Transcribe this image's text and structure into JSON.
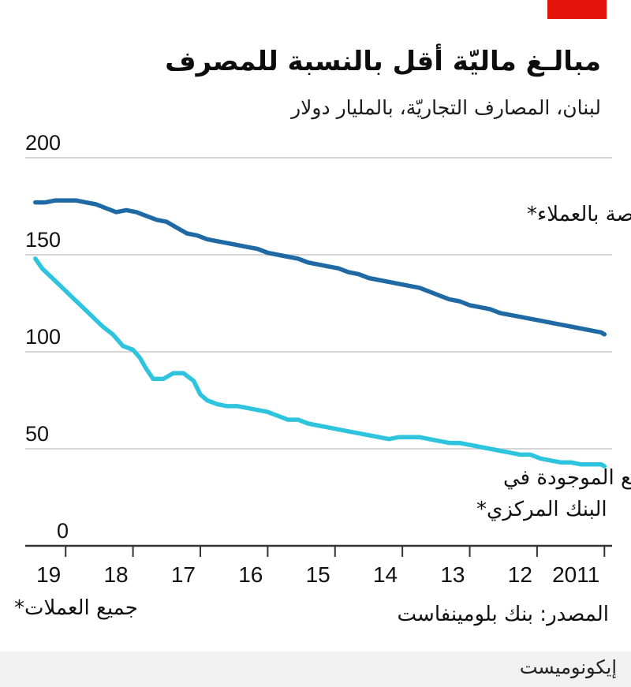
{
  "title": "مبالـغ ماليّة أقل بالنسبة للمصرف",
  "subtitle": "لبنان، المصارف التجاريّة، بالمليار دولار",
  "footnote": "جميع العملات*",
  "source": "المصدر: بنك بلومينفاست",
  "brand": "إيكونوميست",
  "colors": {
    "brand_red": "#e3120b",
    "customer_deposits": "#1f6aa5",
    "central_bank_deposits": "#2ec4dd",
    "grid": "#c8c8c8",
    "axis": "#333333"
  },
  "chart_data": {
    "type": "line",
    "x_axis_direction": "right-to-left",
    "x_tick_labels": [
      "2011",
      "12",
      "13",
      "14",
      "15",
      "16",
      "17",
      "18",
      "19"
    ],
    "x_tick_years": [
      2011,
      2012,
      2013,
      2014,
      2015,
      2016,
      2017,
      2018,
      2019
    ],
    "xlim": [
      2010.98,
      2019.6
    ],
    "ylim": [
      0,
      200
    ],
    "y_ticks": [
      0,
      50,
      100,
      150,
      200
    ],
    "grid": true,
    "series": [
      {
        "name": "الودائع الخاصة بالعملاء*",
        "color": "#1f6aa5",
        "points": [
          [
            2019.45,
            177
          ],
          [
            2019.3,
            177
          ],
          [
            2019.15,
            178
          ],
          [
            2019.0,
            178
          ],
          [
            2018.85,
            178
          ],
          [
            2018.7,
            177
          ],
          [
            2018.55,
            176
          ],
          [
            2018.4,
            174
          ],
          [
            2018.25,
            172
          ],
          [
            2018.1,
            173
          ],
          [
            2017.95,
            172
          ],
          [
            2017.8,
            170
          ],
          [
            2017.65,
            168
          ],
          [
            2017.5,
            167
          ],
          [
            2017.35,
            164
          ],
          [
            2017.2,
            161
          ],
          [
            2017.05,
            160
          ],
          [
            2016.9,
            158
          ],
          [
            2016.75,
            157
          ],
          [
            2016.6,
            156
          ],
          [
            2016.45,
            155
          ],
          [
            2016.3,
            154
          ],
          [
            2016.15,
            153
          ],
          [
            2016.0,
            151
          ],
          [
            2015.85,
            150
          ],
          [
            2015.7,
            149
          ],
          [
            2015.55,
            148
          ],
          [
            2015.4,
            146
          ],
          [
            2015.25,
            145
          ],
          [
            2015.1,
            144
          ],
          [
            2014.95,
            143
          ],
          [
            2014.8,
            141
          ],
          [
            2014.65,
            140
          ],
          [
            2014.5,
            138
          ],
          [
            2014.35,
            137
          ],
          [
            2014.2,
            136
          ],
          [
            2014.05,
            135
          ],
          [
            2013.9,
            134
          ],
          [
            2013.75,
            133
          ],
          [
            2013.6,
            131
          ],
          [
            2013.45,
            129
          ],
          [
            2013.3,
            127
          ],
          [
            2013.15,
            126
          ],
          [
            2013.0,
            124
          ],
          [
            2012.85,
            123
          ],
          [
            2012.7,
            122
          ],
          [
            2012.55,
            120
          ],
          [
            2012.4,
            119
          ],
          [
            2012.25,
            118
          ],
          [
            2012.1,
            117
          ],
          [
            2011.95,
            116
          ],
          [
            2011.8,
            115
          ],
          [
            2011.65,
            114
          ],
          [
            2011.5,
            113
          ],
          [
            2011.35,
            112
          ],
          [
            2011.2,
            111
          ],
          [
            2011.05,
            110
          ],
          [
            2011.0,
            109
          ]
        ],
        "label_line": "الودائع الخاصة بالعملاء*"
      },
      {
        "name": "الودائع الموجودة في البنك المركزي*",
        "color": "#2ec4dd",
        "points": [
          [
            2019.45,
            148
          ],
          [
            2019.35,
            143
          ],
          [
            2019.2,
            138
          ],
          [
            2019.05,
            133
          ],
          [
            2018.9,
            128
          ],
          [
            2018.75,
            123
          ],
          [
            2018.6,
            118
          ],
          [
            2018.45,
            113
          ],
          [
            2018.3,
            109
          ],
          [
            2018.15,
            103
          ],
          [
            2018.0,
            101
          ],
          [
            2017.9,
            97
          ],
          [
            2017.8,
            91
          ],
          [
            2017.7,
            86
          ],
          [
            2017.55,
            86
          ],
          [
            2017.4,
            89
          ],
          [
            2017.25,
            89
          ],
          [
            2017.1,
            85
          ],
          [
            2017.0,
            78
          ],
          [
            2016.9,
            75
          ],
          [
            2016.75,
            73
          ],
          [
            2016.6,
            72
          ],
          [
            2016.45,
            72
          ],
          [
            2016.3,
            71
          ],
          [
            2016.15,
            70
          ],
          [
            2016.0,
            69
          ],
          [
            2015.85,
            67
          ],
          [
            2015.7,
            65
          ],
          [
            2015.55,
            65
          ],
          [
            2015.4,
            63
          ],
          [
            2015.25,
            62
          ],
          [
            2015.1,
            61
          ],
          [
            2014.95,
            60
          ],
          [
            2014.8,
            59
          ],
          [
            2014.65,
            58
          ],
          [
            2014.5,
            57
          ],
          [
            2014.35,
            56
          ],
          [
            2014.2,
            55
          ],
          [
            2014.05,
            56
          ],
          [
            2013.9,
            56
          ],
          [
            2013.75,
            56
          ],
          [
            2013.6,
            55
          ],
          [
            2013.45,
            54
          ],
          [
            2013.3,
            53
          ],
          [
            2013.15,
            53
          ],
          [
            2013.0,
            52
          ],
          [
            2012.85,
            51
          ],
          [
            2012.7,
            50
          ],
          [
            2012.55,
            49
          ],
          [
            2012.4,
            48
          ],
          [
            2012.25,
            47
          ],
          [
            2012.1,
            47
          ],
          [
            2011.95,
            45
          ],
          [
            2011.8,
            44
          ],
          [
            2011.65,
            43
          ],
          [
            2011.5,
            43
          ],
          [
            2011.35,
            42
          ],
          [
            2011.2,
            42
          ],
          [
            2011.05,
            42
          ],
          [
            2011.0,
            41
          ]
        ],
        "label_lines": [
          "الودائع الموجودة في",
          "البنك المركزي*"
        ]
      }
    ]
  }
}
